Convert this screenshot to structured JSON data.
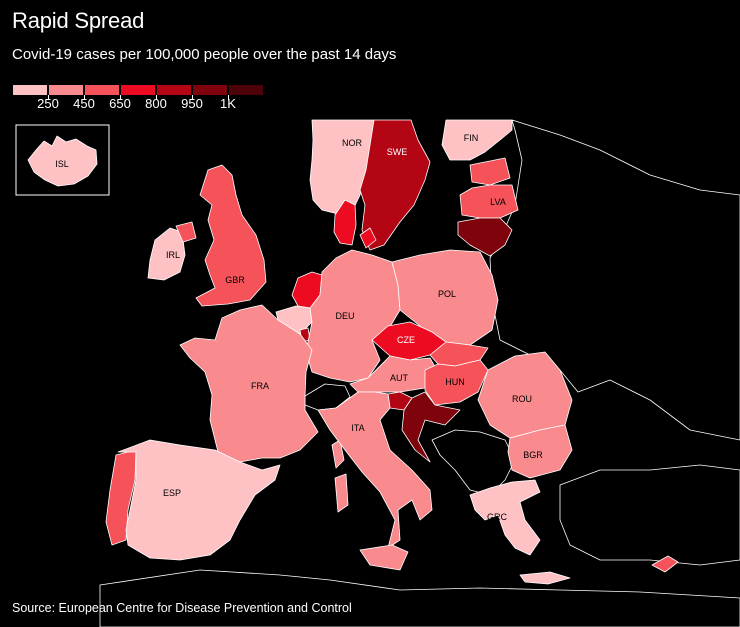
{
  "title": "Rapid Spread",
  "subtitle": "Covid-19 cases per 100,000 people over the past 14 days",
  "source": "Source: European Centre for Disease Prevention and Control",
  "legend": {
    "colors": [
      "#ffc2c4",
      "#f98a8e",
      "#f5525a",
      "#ec0b20",
      "#b30513",
      "#7f030d",
      "#4c0208"
    ],
    "labels": [
      "250",
      "450",
      "650",
      "800",
      "950",
      "1K"
    ]
  },
  "countries": {
    "isl": {
      "label": "ISL",
      "color": "#ffc2c4"
    },
    "nor": {
      "label": "NOR",
      "color": "#ffc2c4"
    },
    "swe": {
      "label": "SWE",
      "color": "#b30513"
    },
    "fin": {
      "label": "FIN",
      "color": "#ffc2c4"
    },
    "lva": {
      "label": "LVA",
      "color": "#f5525a"
    },
    "irl": {
      "label": "IRL",
      "color": "#ffc2c4"
    },
    "gbr": {
      "label": "GBR",
      "color": "#f5525a"
    },
    "deu": {
      "label": "DEU",
      "color": "#f98a8e"
    },
    "pol": {
      "label": "POL",
      "color": "#f98a8e"
    },
    "cze": {
      "label": "CZE",
      "color": "#ec0b20"
    },
    "fra": {
      "label": "FRA",
      "color": "#f98a8e"
    },
    "aut": {
      "label": "AUT",
      "color": "#f98a8e"
    },
    "hun": {
      "label": "HUN",
      "color": "#f5525a"
    },
    "rou": {
      "label": "ROU",
      "color": "#f98a8e"
    },
    "ita": {
      "label": "ITA",
      "color": "#f98a8e"
    },
    "bgr": {
      "label": "BGR",
      "color": "#f98a8e"
    },
    "esp": {
      "label": "ESP",
      "color": "#ffc2c4"
    },
    "grc": {
      "label": "GRC",
      "color": "#ffc2c4"
    }
  }
}
